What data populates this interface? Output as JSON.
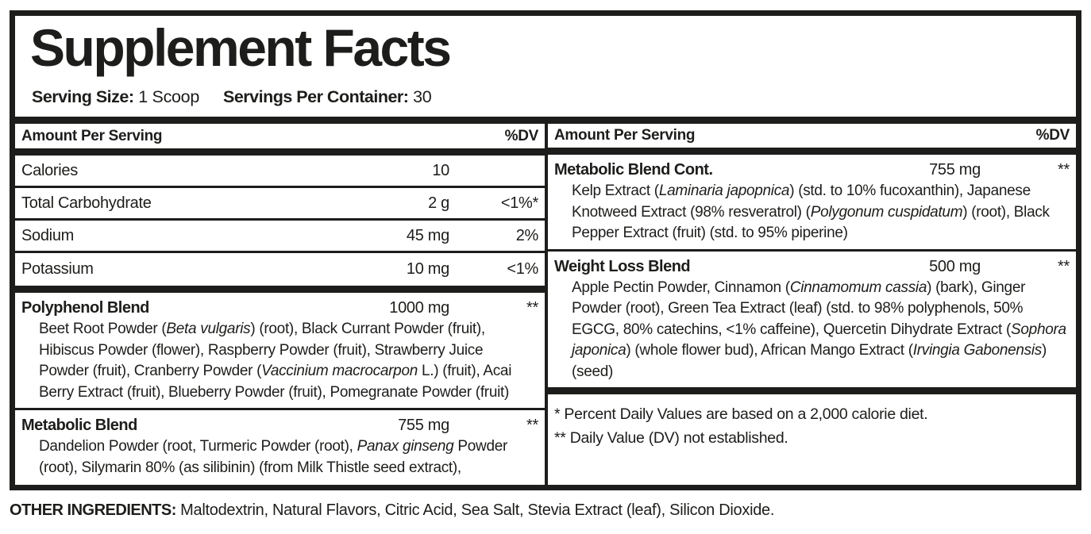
{
  "colors": {
    "ink": "#1d1d1b",
    "background": "#ffffff"
  },
  "title": "Supplement Facts",
  "serving": {
    "size_label": "Serving Size:",
    "size_value": "1 Scoop",
    "container_label": "Servings Per Container:",
    "container_value": "30"
  },
  "table": {
    "header": {
      "amount": "Amount Per Serving",
      "dv": "%DV"
    }
  },
  "left": {
    "nutrients": [
      {
        "name": "Calories",
        "amount": "10",
        "dv": ""
      },
      {
        "name": "Total Carbohydrate",
        "amount": "2 g",
        "dv": "<1%*"
      },
      {
        "name": "Sodium",
        "amount": "45 mg",
        "dv": "2%"
      },
      {
        "name": "Potassium",
        "amount": "10 mg",
        "dv": "<1%"
      }
    ],
    "blends": [
      {
        "name": "Polyphenol Blend",
        "amount": "1000 mg",
        "dv": "**",
        "ingredients": [
          {
            "text": "Beet Root Powder (",
            "italic": false
          },
          {
            "text": "Beta vulgaris",
            "italic": true
          },
          {
            "text": ") (root), Black Currant Powder (fruit), Hibiscus Powder (flower), Raspberry Powder (fruit), Strawberry Juice Powder (fruit), Cranberry Powder (",
            "italic": false
          },
          {
            "text": "Vaccinium macrocarpon",
            "italic": true
          },
          {
            "text": " L.) (fruit), Acai Berry Extract (fruit), Blueberry Powder (fruit), Pomegranate Powder (fruit)",
            "italic": false
          }
        ]
      },
      {
        "name": "Metabolic Blend",
        "amount": "755 mg",
        "dv": "**",
        "ingredients": [
          {
            "text": "Dandelion Powder (root, Turmeric Powder (root), ",
            "italic": false
          },
          {
            "text": "Panax ginseng",
            "italic": true
          },
          {
            "text": " Powder (root), Silymarin 80% (as silibinin) (from Milk Thistle seed extract),",
            "italic": false
          }
        ]
      }
    ]
  },
  "right": {
    "blends": [
      {
        "name": "Metabolic Blend Cont.",
        "amount": "755 mg",
        "dv": "**",
        "ingredients": [
          {
            "text": "Kelp Extract (",
            "italic": false
          },
          {
            "text": "Laminaria japopnica",
            "italic": true
          },
          {
            "text": ") (std. to 10% fucoxanthin), Japanese Knotweed Extract (98% resveratrol) (",
            "italic": false
          },
          {
            "text": "Polygonum cuspidatum",
            "italic": true
          },
          {
            "text": ") (root), Black Pepper Extract (fruit)  (std. to 95% piperine)",
            "italic": false
          }
        ]
      },
      {
        "name": "Weight Loss Blend",
        "amount": "500 mg",
        "dv": "**",
        "ingredients": [
          {
            "text": "Apple Pectin Powder, Cinnamon (",
            "italic": false
          },
          {
            "text": "Cinnamomum cassia",
            "italic": true
          },
          {
            "text": ") (bark), Ginger Powder (root), Green Tea Extract (leaf) (std. to 98% polyphenols, 50% EGCG, 80% catechins, <1% caffeine), Quercetin Dihydrate Extract (",
            "italic": false
          },
          {
            "text": "Sophora japonica",
            "italic": true
          },
          {
            "text": ") (whole flower bud), African Mango Extract (",
            "italic": false
          },
          {
            "text": "Irvingia Gabonensis",
            "italic": true
          },
          {
            "text": ") (seed)",
            "italic": false
          }
        ]
      }
    ],
    "footnotes": [
      {
        "marker": "*",
        "text": "Percent Daily Values are based on a 2,000 calorie diet."
      },
      {
        "marker": "**",
        "text": "Daily Value (DV) not established."
      }
    ]
  },
  "other_ingredients": {
    "label": "OTHER INGREDIENTS:",
    "text": "Maltodextrin, Natural Flavors, Citric Acid, Sea Salt, Stevia Extract (leaf), Silicon Dioxide."
  }
}
